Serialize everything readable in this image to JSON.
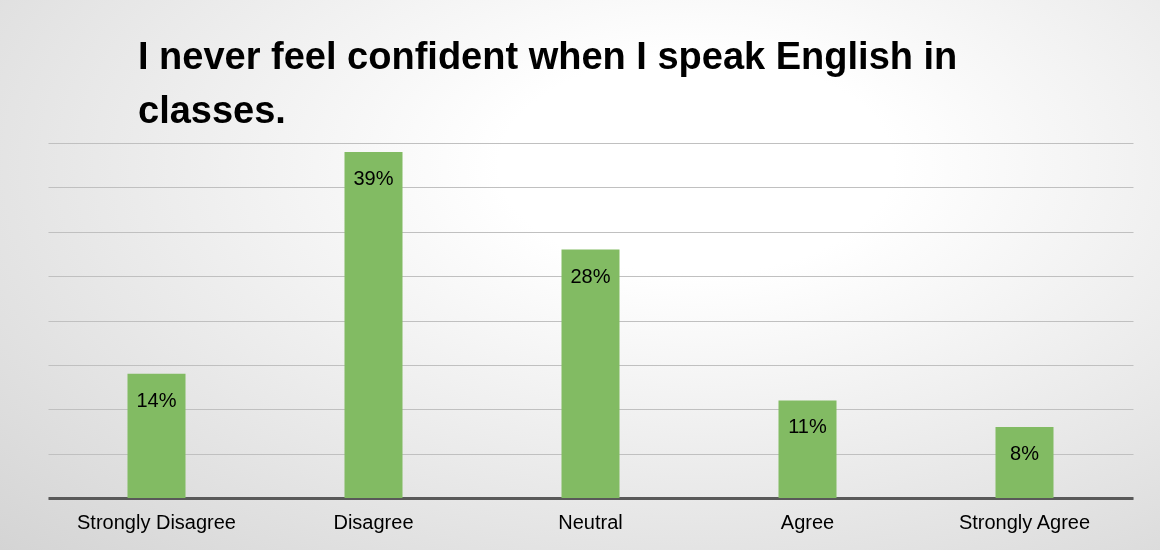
{
  "chart_data": {
    "type": "bar",
    "title": "I never feel confident when I speak English in classes.",
    "categories": [
      "Strongly Disagree",
      "Disagree",
      "Neutral",
      "Agree",
      "Strongly Agree"
    ],
    "values": [
      14,
      39,
      28,
      11,
      8
    ],
    "color": "#82bb63",
    "value_labels": [
      "14%",
      "39%",
      "28%",
      "11%",
      "8%"
    ],
    "grid": "y",
    "tick_labels": "x"
  }
}
